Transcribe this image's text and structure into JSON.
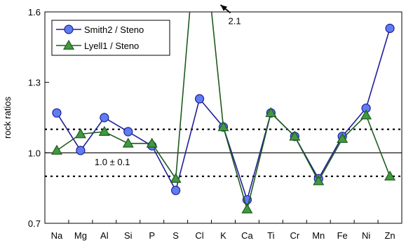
{
  "chart_data": {
    "type": "line",
    "title": "",
    "xlabel": "",
    "ylabel": "rock ratios",
    "ylim": [
      0.7,
      1.6
    ],
    "yticks": [
      "0.7",
      "1.0",
      "1.3",
      "1.6"
    ],
    "categories": [
      "Na",
      "Mg",
      "Al",
      "Si",
      "P",
      "S",
      "Cl",
      "K",
      "Ca",
      "Ti",
      "Cr",
      "Mn",
      "Fe",
      "Ni",
      "Zn"
    ],
    "series": [
      {
        "name": "Smith2 / Steno",
        "marker": "circle",
        "color": "#1f1f9a",
        "fill": "#5f7df0",
        "values": [
          1.17,
          1.01,
          1.15,
          1.09,
          1.03,
          0.84,
          1.23,
          1.11,
          0.8,
          1.17,
          1.07,
          0.89,
          1.07,
          1.19,
          1.53
        ]
      },
      {
        "name": "Lyell1 / Steno",
        "marker": "triangle",
        "color": "#1f5a1f",
        "fill": "#3f9a3f",
        "values": [
          1.01,
          1.08,
          1.09,
          1.04,
          1.04,
          0.89,
          2.1,
          1.11,
          0.76,
          1.17,
          1.07,
          0.88,
          1.06,
          1.16,
          0.9
        ]
      }
    ],
    "reference_lines": {
      "solid": 1.0,
      "dotted": [
        0.9,
        1.1
      ]
    },
    "annotations": [
      {
        "text": "1.0 ± 0.1",
        "x": "Mg",
        "y": 0.96
      },
      {
        "text": "2.1",
        "x": "Cl",
        "y": 1.56
      }
    ],
    "legend": "top-left",
    "grid": false
  }
}
